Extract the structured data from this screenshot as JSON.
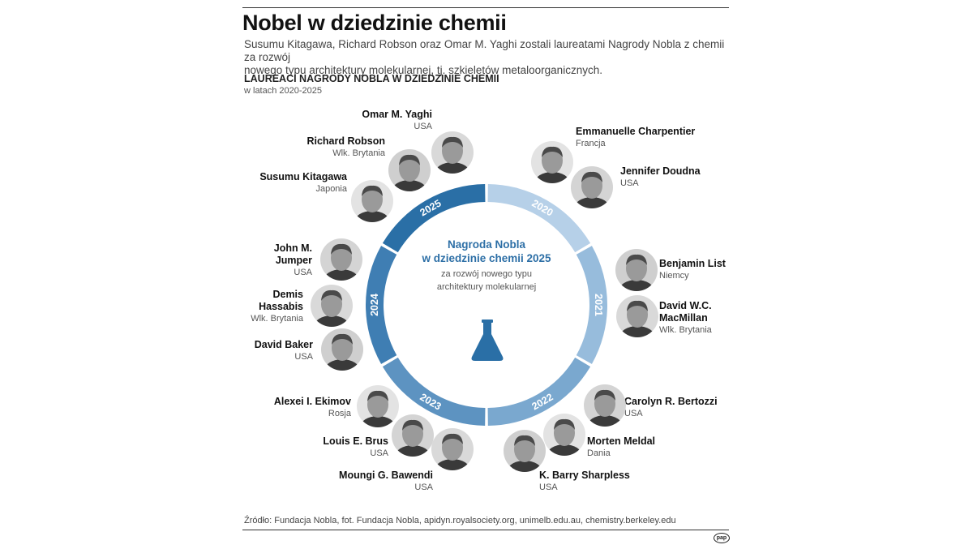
{
  "header": {
    "title": "Nobel w dziedzinie chemii",
    "intro_line1": "Susumu Kitagawa, Richard Robson oraz Omar M. Yaghi zostali laureatami Nagrody Nobla z chemii za rozwój",
    "intro_line2": "nowego typu architektury molekularnej, tj. szkieletów metaloorganicznych.",
    "subheading": "LAUREACI NAGRODY NOBLA W DZIEDZINIE CHEMII",
    "subheading_period": "w latach 2020-2025"
  },
  "wheel": {
    "center_title_line1": "Nagroda Nobla",
    "center_title_line2": "w dziedzinie chemii 2025",
    "center_sub_line1": "za rozwój nowego typu",
    "center_sub_line2": "architektury molekularnej",
    "years": [
      "2020",
      "2021",
      "2022",
      "2023",
      "2024",
      "2025"
    ],
    "colors": {
      "2025": "#2a6fa6",
      "2024": "#3f7eb3",
      "2023": "#5d93c1",
      "2022": "#7aa8cf",
      "2021": "#97bcdc",
      "2020": "#b6d0e8"
    }
  },
  "laureates": [
    {
      "name": "Omar M. Yaghi",
      "country": "USA",
      "year": "2025"
    },
    {
      "name": "Richard Robson",
      "country": "Wlk. Brytania",
      "year": "2025"
    },
    {
      "name": "Susumu Kitagawa",
      "country": "Japonia",
      "year": "2025"
    },
    {
      "name": "John M.",
      "name2": "Jumper",
      "country": "USA",
      "year": "2024"
    },
    {
      "name": "Demis",
      "name2": "Hassabis",
      "country": "Wlk. Brytania",
      "year": "2024"
    },
    {
      "name": "David Baker",
      "country": "USA",
      "year": "2024"
    },
    {
      "name": "Alexei I. Ekimov",
      "country": "Rosja",
      "year": "2023"
    },
    {
      "name": "Louis E. Brus",
      "country": "USA",
      "year": "2023"
    },
    {
      "name": "Moungi G. Bawendi",
      "country": "USA",
      "year": "2023"
    },
    {
      "name": "K. Barry Sharpless",
      "country": "USA",
      "year": "2022"
    },
    {
      "name": "Morten Meldal",
      "country": "Dania",
      "year": "2022"
    },
    {
      "name": "Carolyn R. Bertozzi",
      "country": "USA",
      "year": "2022"
    },
    {
      "name": "David W.C.",
      "name2": "MacMillan",
      "country": "Wlk. Brytania",
      "year": "2021"
    },
    {
      "name": "Benjamin List",
      "country": "Niemcy",
      "year": "2021"
    },
    {
      "name": "Emmanuelle Charpentier",
      "country": "Francja",
      "year": "2020"
    },
    {
      "name": "Jennifer Doudna",
      "country": "USA",
      "year": "2020"
    }
  ],
  "footer": {
    "source": "Źródło: Fundacja Nobla, fot. Fundacja Nobla, apidyn.royalsociety.org, unimelb.edu.au, chemistry.berkeley.edu",
    "logo": "pap"
  }
}
